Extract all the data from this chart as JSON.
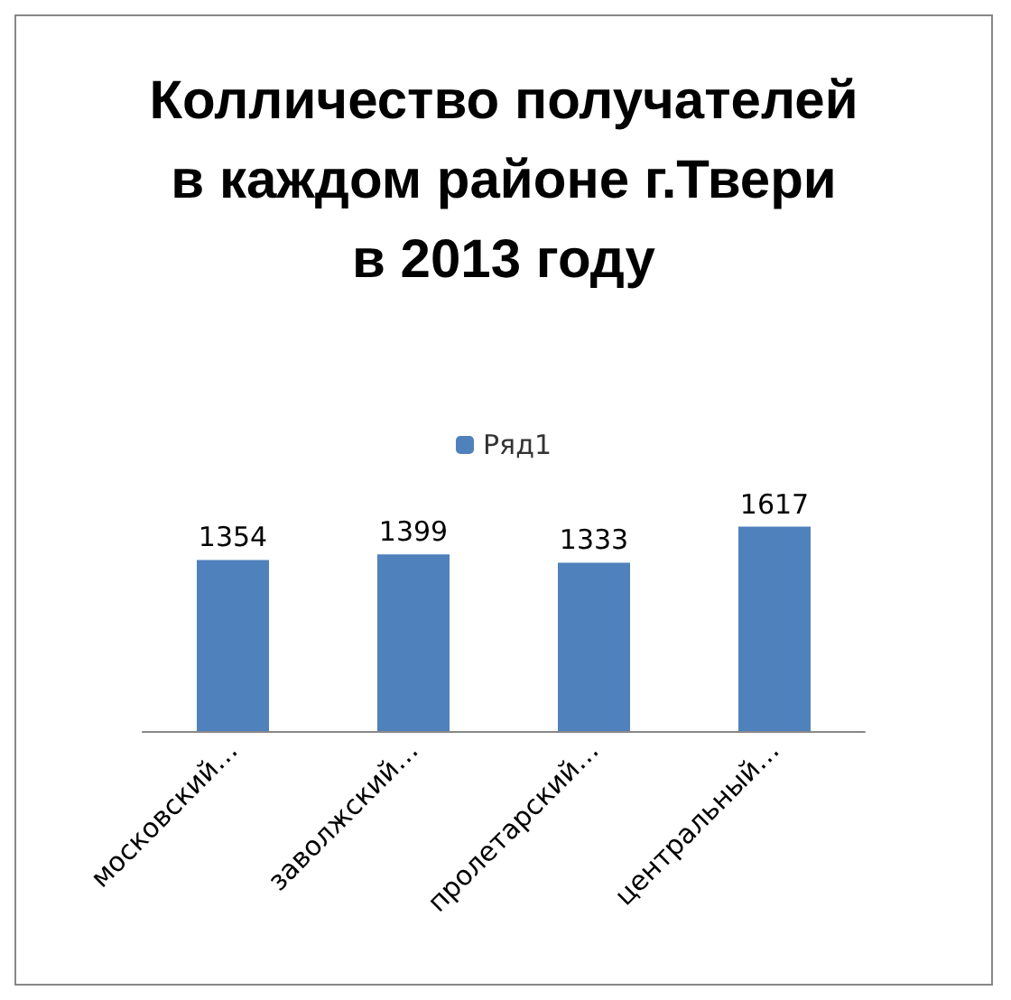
{
  "chart_data": {
    "type": "bar",
    "title": "Колличество получателей\nв каждом районе г.Твери\nв 2013 году",
    "categories": [
      "московский…",
      "заволжский…",
      "пролетарский…",
      "центральный…"
    ],
    "series": [
      {
        "name": "Ряд1",
        "color": "#4f81bd",
        "values": [
          1354,
          1399,
          1333,
          1617
        ]
      }
    ],
    "data_labels": true,
    "legend": "top"
  }
}
